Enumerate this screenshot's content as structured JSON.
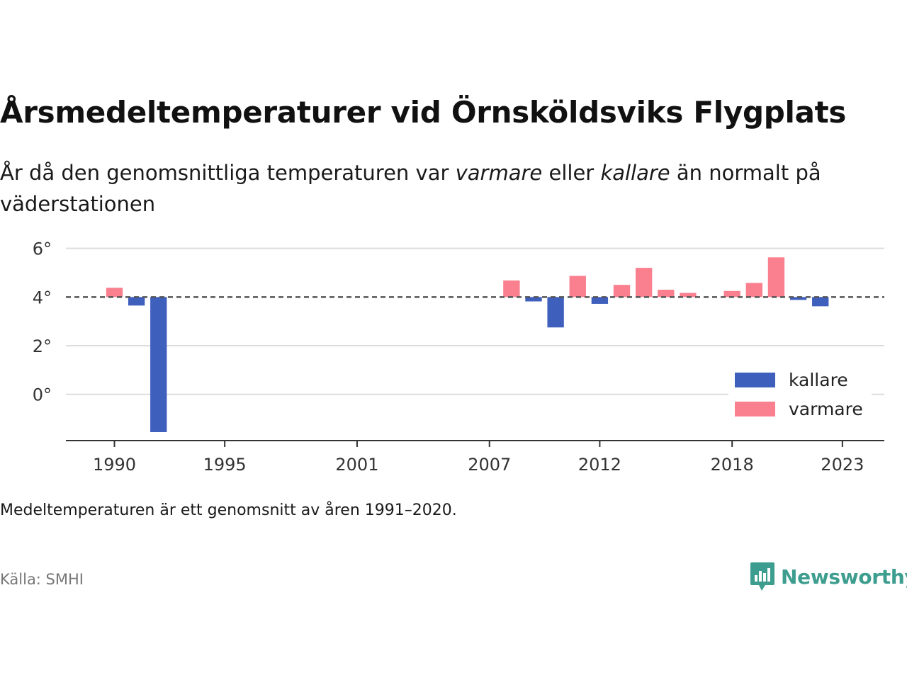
{
  "title": "Årsmedeltemperaturer vid Örnsköldsviks Flygplats",
  "subtitle": {
    "part1": "År då den genomsnittliga temperaturen var ",
    "warmer_word": "varmare",
    "part2": " eller ",
    "colder_word": "kallare",
    "part3": " än normalt på väderstationen"
  },
  "note": "Medeltemperaturen är ett genomsnitt av åren 1991–2020.",
  "source": "Källa: SMHI",
  "brand": {
    "name": "Newsworthy",
    "icon": "newsworthy-logo-icon",
    "color": "#3d9d8e"
  },
  "colors": {
    "kallare": "#3f5fbd",
    "varmare": "#fa8090",
    "grid": "#dddddd",
    "baseline": "#555555",
    "axis": "#333333"
  },
  "chart_data": {
    "type": "bar",
    "baseline": 4.0,
    "ylim": [
      -1.9,
      6.6
    ],
    "yticks": [
      0,
      2,
      4,
      6
    ],
    "ytick_labels": [
      "0°",
      "2°",
      "4°",
      "6°"
    ],
    "xlim": [
      1987.8,
      2024.9
    ],
    "xticks": [
      1990,
      1995,
      2001,
      2007,
      2012,
      2018,
      2023
    ],
    "xtick_labels": [
      "1990",
      "1995",
      "2001",
      "2007",
      "2012",
      "2018",
      "2023"
    ],
    "grid": true,
    "legend_position": "bottom-right",
    "series": [
      {
        "name": "kallare",
        "color": "#3f5fbd",
        "x": [
          1991,
          1992,
          2009,
          2010,
          2012,
          2021,
          2022
        ],
        "values": [
          3.65,
          -1.55,
          3.82,
          2.75,
          3.72,
          3.88,
          3.62
        ]
      },
      {
        "name": "varmare",
        "color": "#fa8090",
        "x": [
          1990,
          2008,
          2011,
          2013,
          2014,
          2015,
          2016,
          2018,
          2019,
          2020
        ],
        "values": [
          4.38,
          4.68,
          4.87,
          4.5,
          5.2,
          4.3,
          4.17,
          4.25,
          4.58,
          5.63
        ]
      }
    ]
  }
}
